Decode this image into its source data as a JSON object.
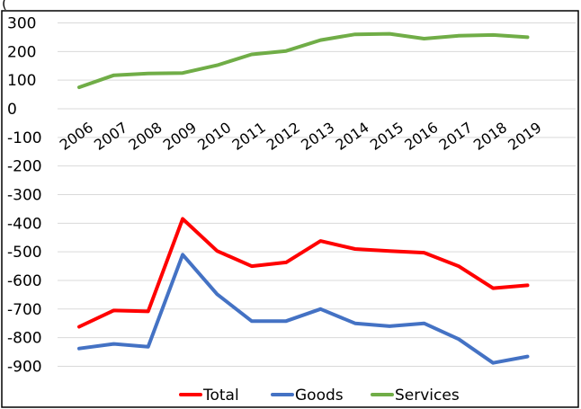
{
  "partial_top_text": "(",
  "chart_data": {
    "type": "line",
    "x": [
      "2006",
      "2007",
      "2008",
      "2009",
      "2010",
      "2011",
      "2012",
      "2013",
      "2014",
      "2015",
      "2016",
      "2017",
      "2018",
      "2019"
    ],
    "series": [
      {
        "name": "Total",
        "color": "#ff0000",
        "values": [
          -762,
          -705,
          -708,
          -385,
          -497,
          -550,
          -537,
          -462,
          -490,
          -497,
          -503,
          -550,
          -627,
          -617
        ]
      },
      {
        "name": "Goods",
        "color": "#4472c4",
        "values": [
          -838,
          -822,
          -832,
          -510,
          -648,
          -742,
          -742,
          -700,
          -750,
          -760,
          -750,
          -805,
          -888,
          -866
        ]
      },
      {
        "name": "Services",
        "color": "#70ad47",
        "values": [
          75,
          117,
          123,
          125,
          152,
          190,
          202,
          240,
          260,
          262,
          245,
          255,
          258,
          250
        ]
      }
    ],
    "yticks": [
      300,
      200,
      100,
      0,
      -100,
      -200,
      -300,
      -400,
      -500,
      -600,
      -700,
      -800,
      -900
    ],
    "ylim": [
      -1000,
      300
    ],
    "grid": true,
    "legend_position": "bottom-center"
  }
}
